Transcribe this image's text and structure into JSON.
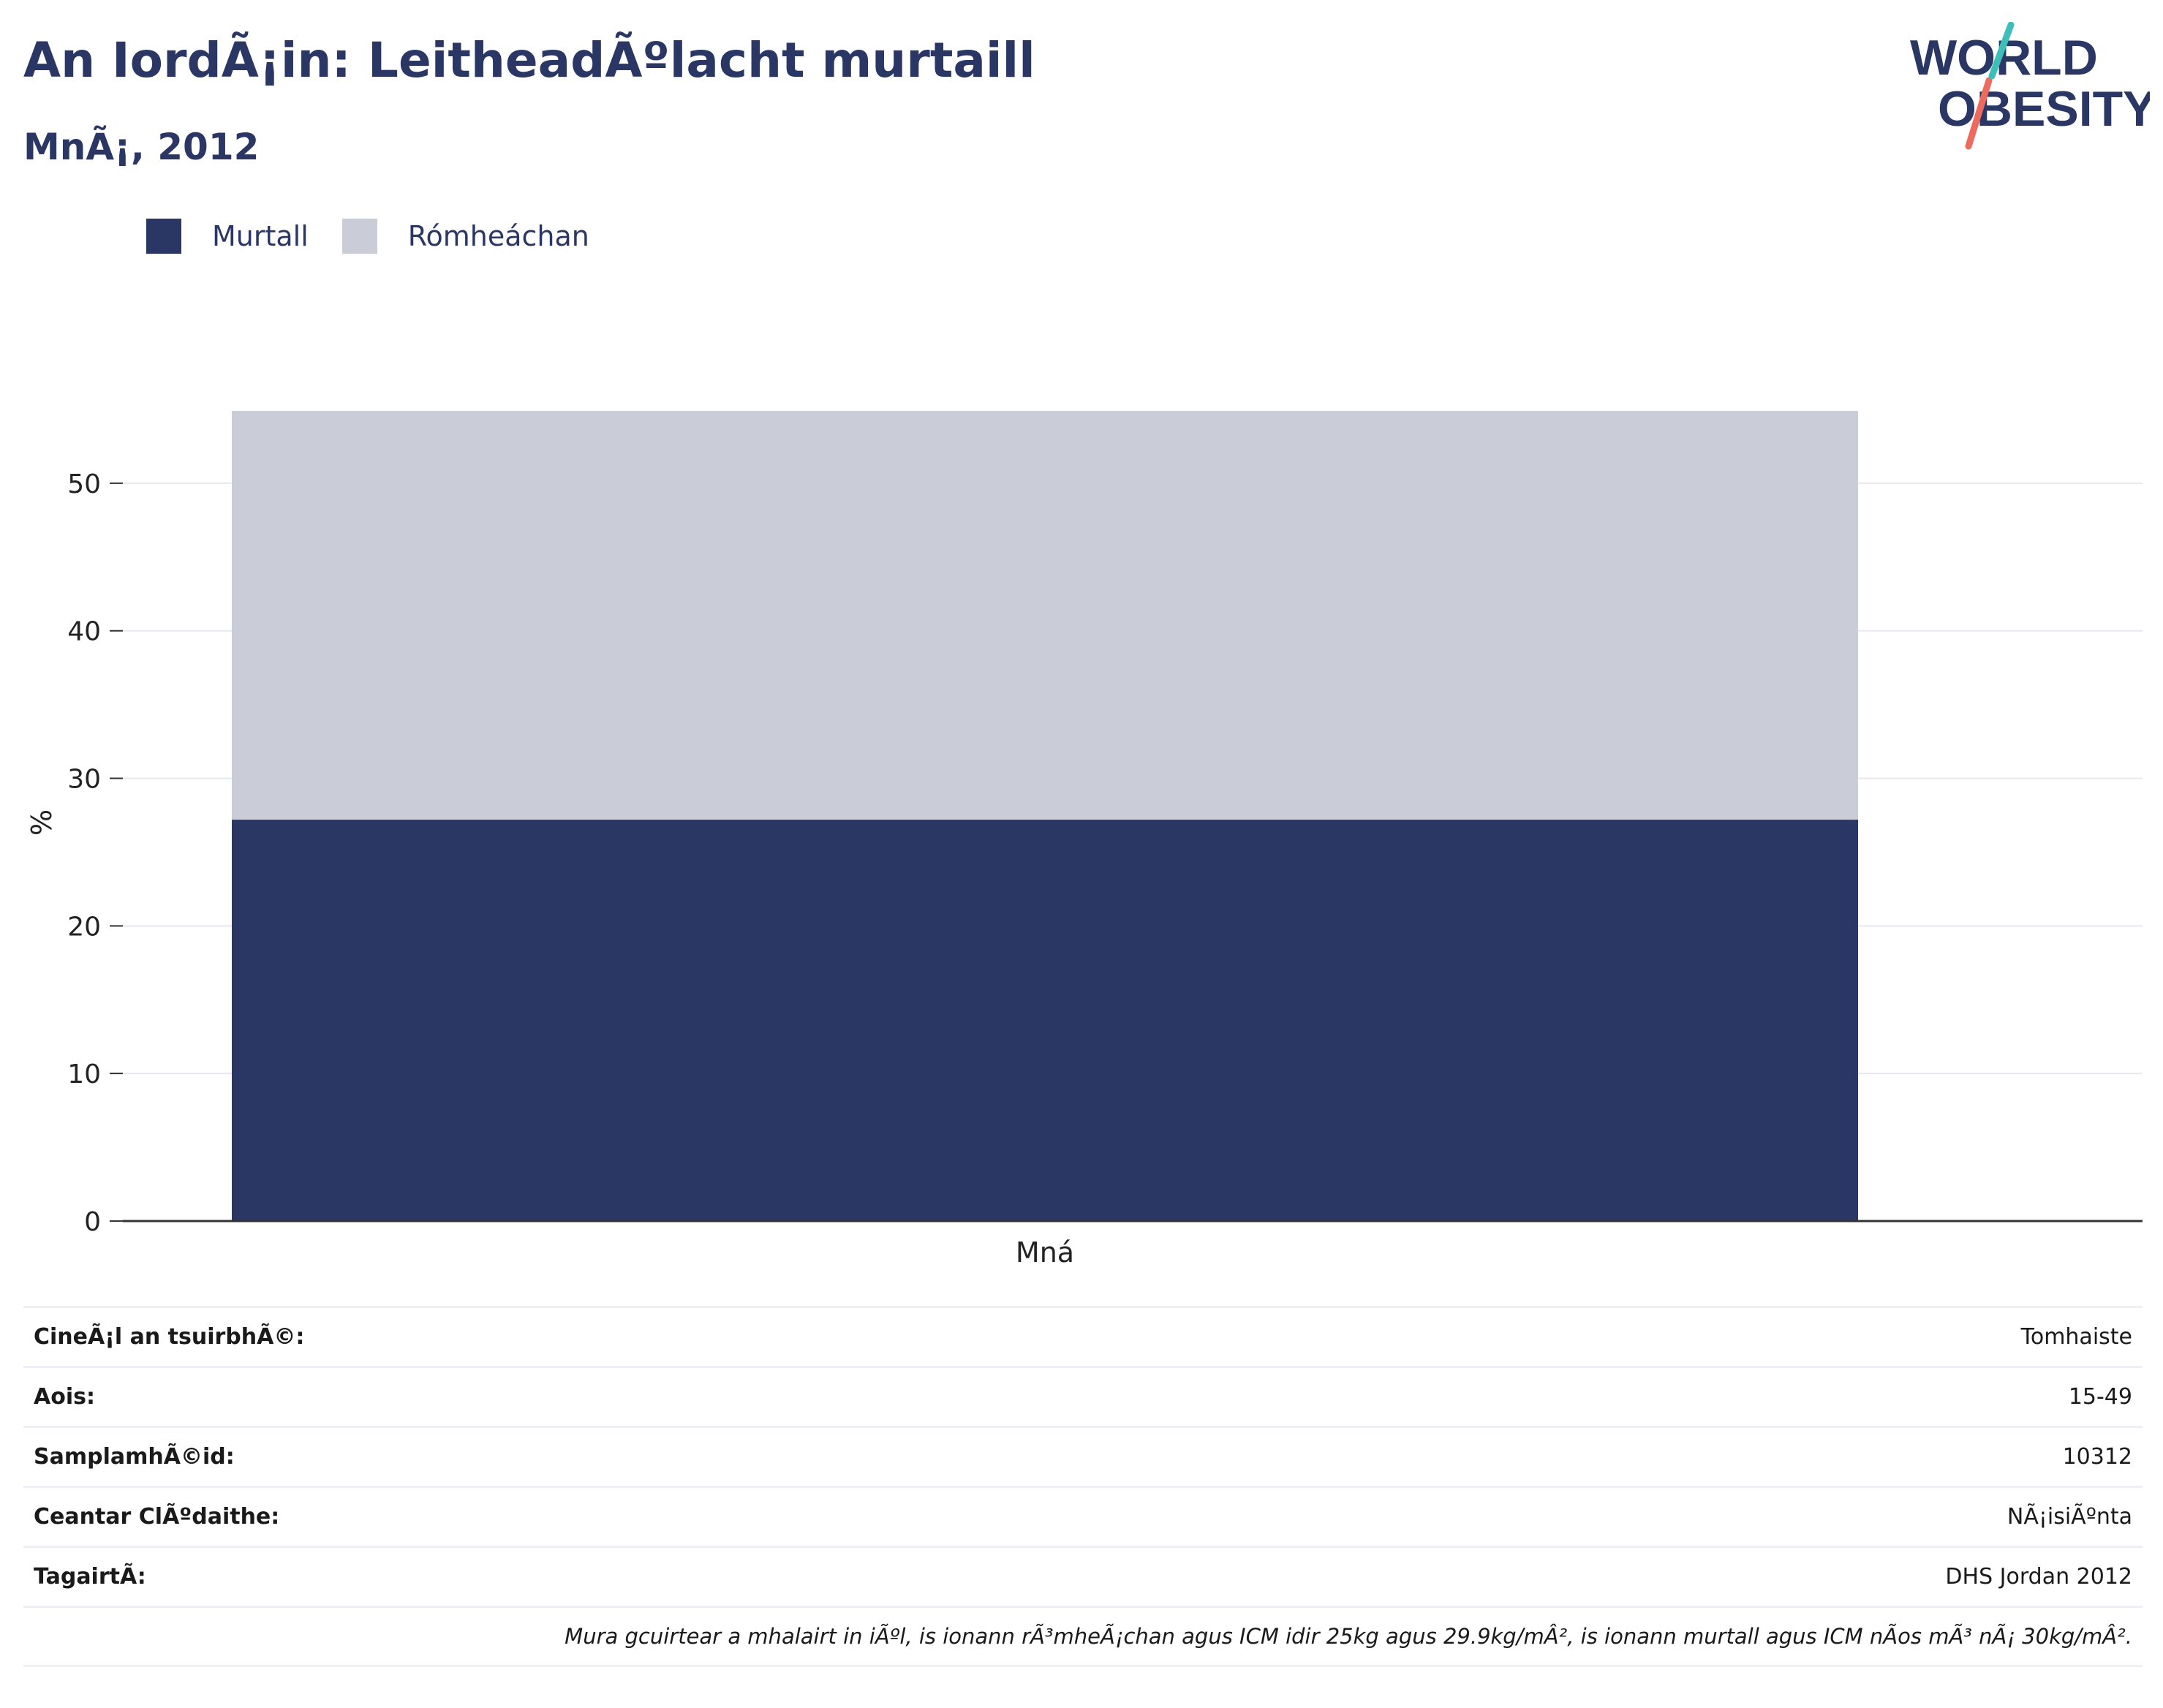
{
  "header": {
    "title": "An IordÃ¡in: LeitheadÃºlacht murtaill",
    "subtitle": "MnÃ¡, 2012",
    "logo_text_line1": "WORLD",
    "logo_text_line2": "OBESITY"
  },
  "chart_data": {
    "type": "bar",
    "stacked": true,
    "categories": [
      "Mná"
    ],
    "series": [
      {
        "name": "Murtall",
        "values": [
          27.2
        ],
        "color": "#2a3663"
      },
      {
        "name": "Rómheáchan",
        "values": [
          27.7
        ],
        "color": "#cacdd8"
      }
    ],
    "ylabel": "%",
    "xlabel": "",
    "ylim": [
      0,
      55
    ],
    "yticks": [
      0,
      10,
      20,
      30,
      40,
      50
    ],
    "grid": true,
    "legend_position": "top-left"
  },
  "info": {
    "rows": [
      {
        "key": "CineÃ¡l an tsuirbhÃ©:",
        "value": "Tomhaiste"
      },
      {
        "key": "Aois:",
        "value": "15-49"
      },
      {
        "key": "SamplamhÃ©id:",
        "value": "10312"
      },
      {
        "key": "Ceantar ClÃºdaithe:",
        "value": "NÃ¡isiÃºnta"
      },
      {
        "key": "TagairtÃ:",
        "value": "DHS Jordan 2012"
      }
    ],
    "note": "Mura gcuirtear a mhalairt in iÃºl, is ionann rÃ³mheÃ¡chan agus ICM idir 25kg agus 29.9kg/mÂ², is ionann murtall agus ICM nÃ­os mÃ³ nÃ¡ 30kg/mÂ²."
  },
  "colors": {
    "brand": "#2a3663",
    "overweight": "#cacdd8",
    "logo_teal": "#3dbfb8",
    "logo_coral": "#ec6b5e"
  }
}
